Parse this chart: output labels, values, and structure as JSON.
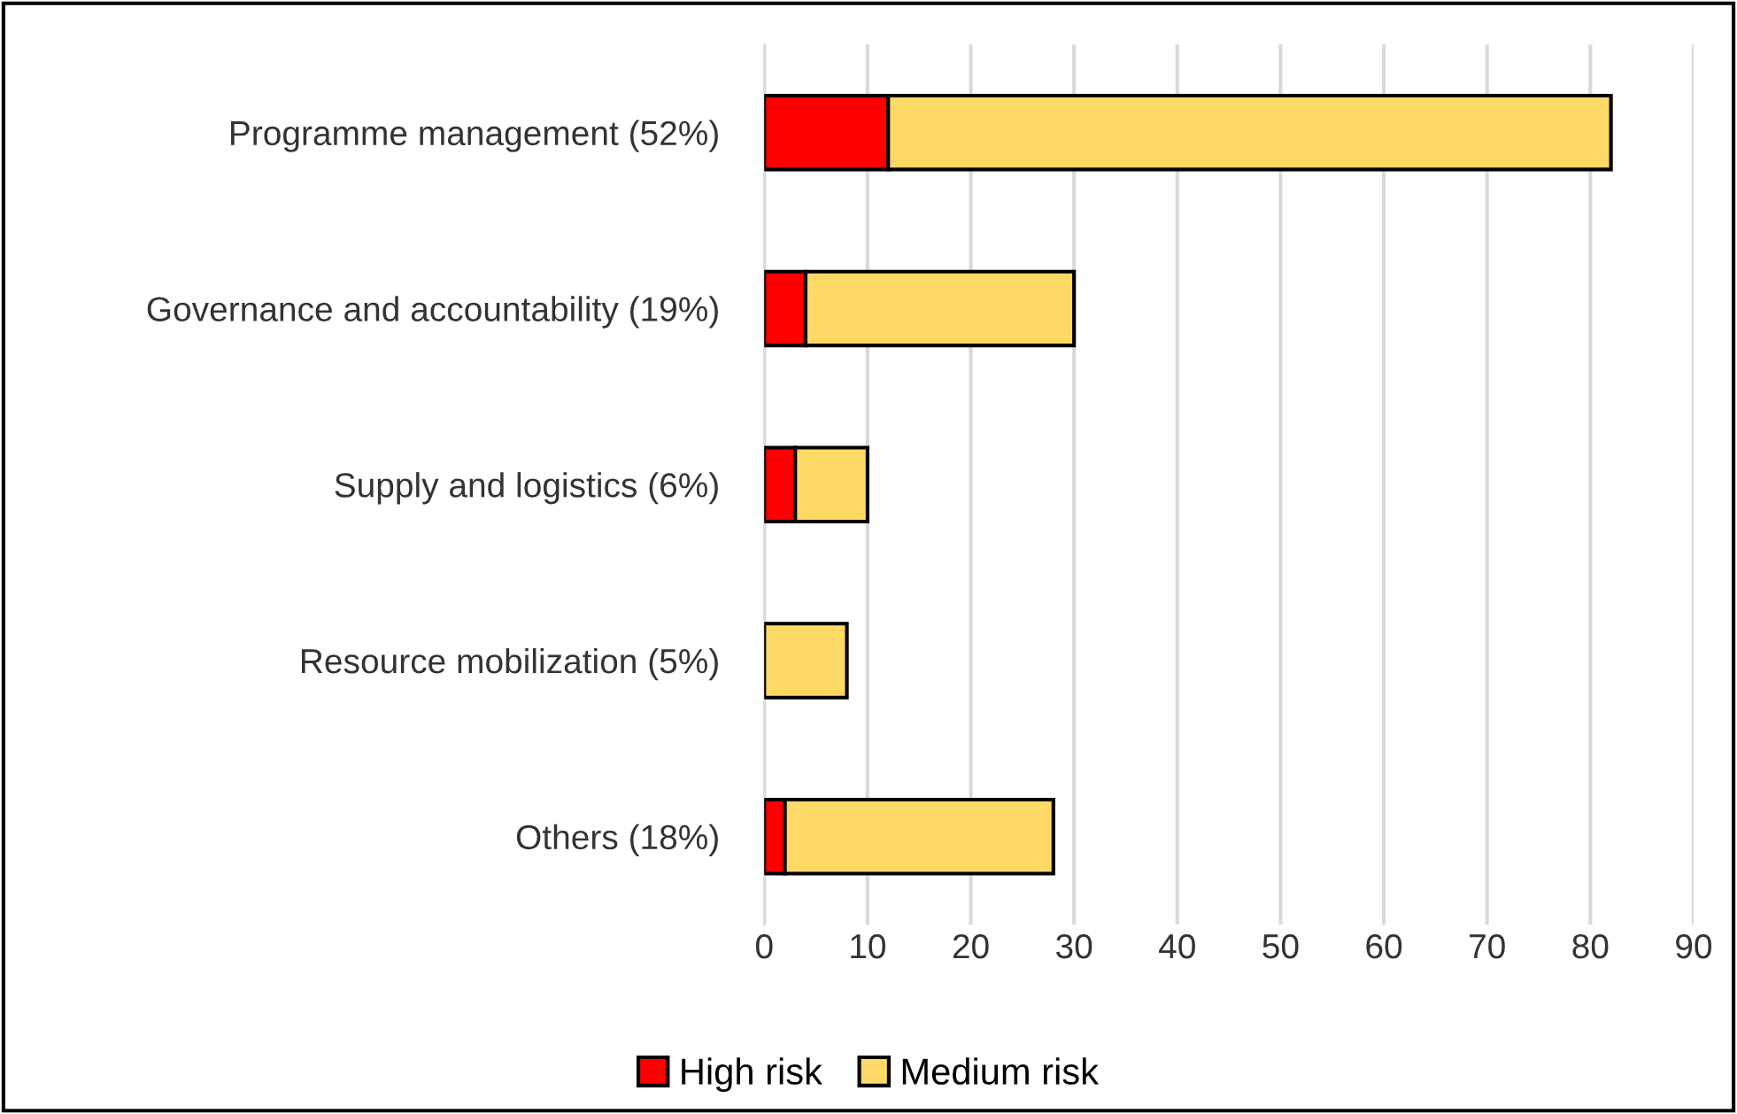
{
  "chart_data": {
    "type": "bar",
    "orientation": "horizontal",
    "stacked": true,
    "categories": [
      "Programme management (52%)",
      "Governance and accountability (19%)",
      "Supply and logistics (6%)",
      "Resource mobilization (5%)",
      "Others (18%)"
    ],
    "series": [
      {
        "name": "High risk",
        "color": "#ff0000",
        "values": [
          12,
          4,
          3,
          0,
          2
        ]
      },
      {
        "name": "Medium risk",
        "color": "#ffd966",
        "values": [
          70,
          26,
          7,
          8,
          26
        ]
      }
    ],
    "xlim": [
      0,
      90
    ],
    "xticks": [
      0,
      10,
      20,
      30,
      40,
      50,
      60,
      70,
      80,
      90
    ],
    "grid": "x",
    "legend": "bottom"
  }
}
